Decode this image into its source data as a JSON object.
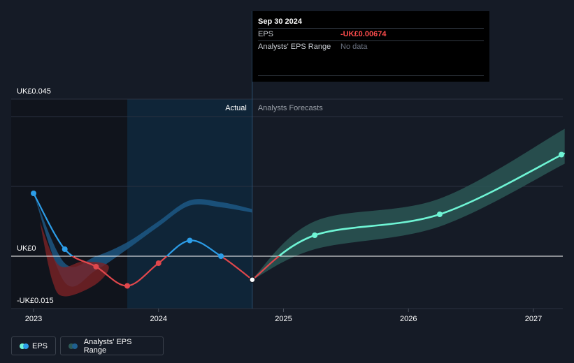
{
  "chart_data": {
    "type": "line",
    "x_unit": "year",
    "x_range": [
      2022.88,
      2027.25
    ],
    "y_range": [
      -0.02,
      0.05
    ],
    "y_ticks": [
      {
        "value": 0.045,
        "label": "UK£0.045"
      },
      {
        "value": 0,
        "label": "UK£0"
      },
      {
        "value": -0.015,
        "label": "-UK£0.015"
      }
    ],
    "x_ticks": [
      {
        "value": 2023,
        "label": "2023"
      },
      {
        "value": 2024,
        "label": "2024"
      },
      {
        "value": 2025,
        "label": "2025"
      },
      {
        "value": 2026,
        "label": "2026"
      },
      {
        "value": 2027,
        "label": "2027"
      }
    ],
    "past_shade_start": 2023.75,
    "actual_end": 2024.75,
    "region_labels": {
      "actual": "Actual",
      "forecast": "Analysts Forecasts"
    },
    "series": [
      {
        "name": "EPS",
        "kind": "actual",
        "points": [
          {
            "x": 2023.0,
            "y": 0.018
          },
          {
            "x": 2023.25,
            "y": 0.002
          },
          {
            "x": 2023.5,
            "y": -0.003
          },
          {
            "x": 2023.75,
            "y": -0.0085
          },
          {
            "x": 2024.0,
            "y": -0.002
          },
          {
            "x": 2024.25,
            "y": 0.0045
          },
          {
            "x": 2024.5,
            "y": 0.0
          },
          {
            "x": 2024.75,
            "y": -0.00674
          }
        ]
      },
      {
        "name": "EPS",
        "kind": "forecast",
        "points": [
          {
            "x": 2024.75,
            "y": -0.00674
          },
          {
            "x": 2025.25,
            "y": 0.006
          },
          {
            "x": 2026.25,
            "y": 0.012
          },
          {
            "x": 2027.25,
            "y": 0.0295
          }
        ]
      }
    ],
    "past_range_band": {
      "upper": [
        {
          "x": 2023.0,
          "y": 0.018
        },
        {
          "x": 2023.25,
          "y": -0.002
        },
        {
          "x": 2023.5,
          "y": 0.0
        },
        {
          "x": 2023.75,
          "y": 0.004
        },
        {
          "x": 2024.0,
          "y": 0.01
        },
        {
          "x": 2024.25,
          "y": 0.016
        },
        {
          "x": 2024.5,
          "y": 0.0155
        },
        {
          "x": 2024.75,
          "y": 0.0135
        }
      ],
      "lower": [
        {
          "x": 2024.75,
          "y": 0.0125
        },
        {
          "x": 2024.5,
          "y": 0.014
        },
        {
          "x": 2024.25,
          "y": 0.0145
        },
        {
          "x": 2024.0,
          "y": 0.0085
        },
        {
          "x": 2023.75,
          "y": 0.002
        },
        {
          "x": 2023.5,
          "y": -0.004
        },
        {
          "x": 2023.25,
          "y": -0.0075
        },
        {
          "x": 2023.0,
          "y": 0.018
        }
      ]
    },
    "forecast_range_band": {
      "upper": [
        {
          "x": 2024.75,
          "y": -0.0065
        },
        {
          "x": 2025.25,
          "y": 0.01
        },
        {
          "x": 2026.25,
          "y": 0.0165
        },
        {
          "x": 2027.25,
          "y": 0.0365
        }
      ],
      "lower": [
        {
          "x": 2027.25,
          "y": 0.0265
        },
        {
          "x": 2026.25,
          "y": 0.0085
        },
        {
          "x": 2025.25,
          "y": 0.002
        },
        {
          "x": 2024.75,
          "y": -0.0068
        }
      ]
    },
    "past_negative_band": [
      {
        "x": 2023.05,
        "y": 0.01
      },
      {
        "x": 2023.2,
        "y": -0.0025
      },
      {
        "x": 2023.4,
        "y": -0.0015
      },
      {
        "x": 2023.6,
        "y": -0.0028
      },
      {
        "x": 2023.5,
        "y": -0.008
      },
      {
        "x": 2023.25,
        "y": -0.0115
      },
      {
        "x": 2023.15,
        "y": -0.007
      }
    ],
    "colors": {
      "background": "#151b26",
      "past_shade": "#10141c",
      "actual_shade": "#0f2538",
      "eps_actual_pos": "#2c9de8",
      "eps_actual_neg": "#e0474c",
      "eps_forecast": "#6ff5d5",
      "band_past": "#1f5f8f",
      "band_negative": "#7a2226",
      "band_forecast": "#2c5a57"
    },
    "tooltip": {
      "date": "Sep 30 2024",
      "eps_label": "EPS",
      "eps_value": "-UK£0.00674",
      "range_label": "Analysts' EPS Range",
      "range_value": "No data"
    },
    "legend": [
      {
        "label": "EPS",
        "colors": [
          "#6ff5d5",
          "#2c9de8"
        ]
      },
      {
        "label": "Analysts' EPS Range",
        "colors": [
          "#2c5a57",
          "#1f5f8f"
        ]
      }
    ]
  }
}
